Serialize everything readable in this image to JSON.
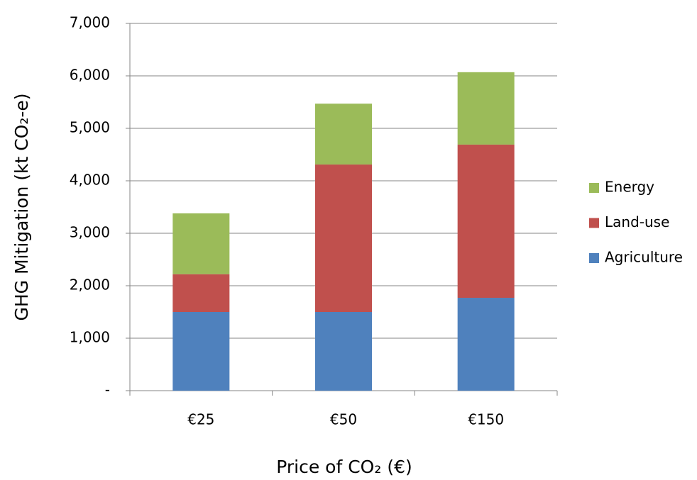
{
  "chart_data": {
    "type": "stacked-bar",
    "x_label": "Price of CO₂ (€)",
    "y_label": "GHG Mitigation (kt CO₂-e)",
    "categories": [
      "€25",
      "€50",
      "€150"
    ],
    "series": [
      {
        "name": "Agriculture",
        "color": "#4f81bd",
        "values": [
          1500,
          1500,
          1770
        ]
      },
      {
        "name": "Land-use",
        "color": "#c0504d",
        "values": [
          720,
          2810,
          2920
        ]
      },
      {
        "name": "Energy",
        "color": "#9bbb59",
        "values": [
          1160,
          1160,
          1380
        ]
      }
    ],
    "ylim": [
      0,
      7000
    ],
    "yticks": [
      {
        "value": 0,
        "label": "-"
      },
      {
        "value": 1000,
        "label": "1,000"
      },
      {
        "value": 2000,
        "label": "2,000"
      },
      {
        "value": 3000,
        "label": "3,000"
      },
      {
        "value": 4000,
        "label": "4,000"
      },
      {
        "value": 5000,
        "label": "5,000"
      },
      {
        "value": 6000,
        "label": "6,000"
      },
      {
        "value": 7000,
        "label": "7,000"
      }
    ],
    "grid": true,
    "legend": "right"
  }
}
